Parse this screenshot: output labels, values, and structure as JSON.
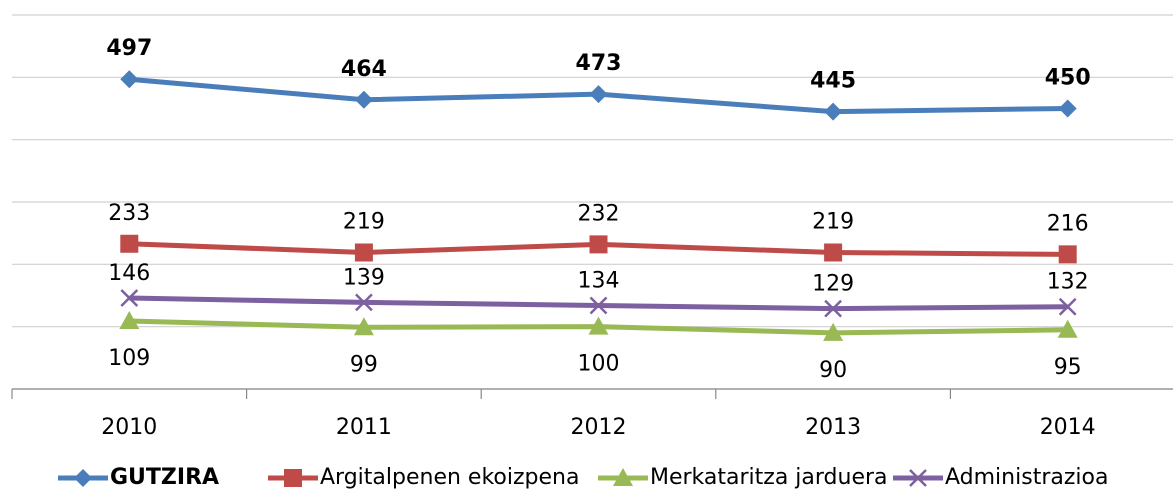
{
  "chart_data": {
    "type": "line",
    "categories": [
      "2010",
      "2011",
      "2012",
      "2013",
      "2014"
    ],
    "series": [
      {
        "name": "GUTZIRA",
        "color": "#4a7ebb",
        "values": [
          497,
          464,
          473,
          445,
          450
        ]
      },
      {
        "name": "Argitalpenen ekoizpena",
        "color": "#be4b48",
        "values": [
          233,
          219,
          232,
          219,
          216
        ]
      },
      {
        "name": "Merkataritza jarduera",
        "color": "#98b954",
        "values": [
          109,
          99,
          100,
          90,
          95
        ]
      },
      {
        "name": "Administrazioa",
        "color": "#7d60a0",
        "values": [
          146,
          139,
          134,
          129,
          132
        ]
      }
    ],
    "ylim": [
      0,
      600
    ],
    "yticks": [
      0,
      100,
      200,
      300,
      400,
      500,
      600
    ],
    "grid": true
  }
}
